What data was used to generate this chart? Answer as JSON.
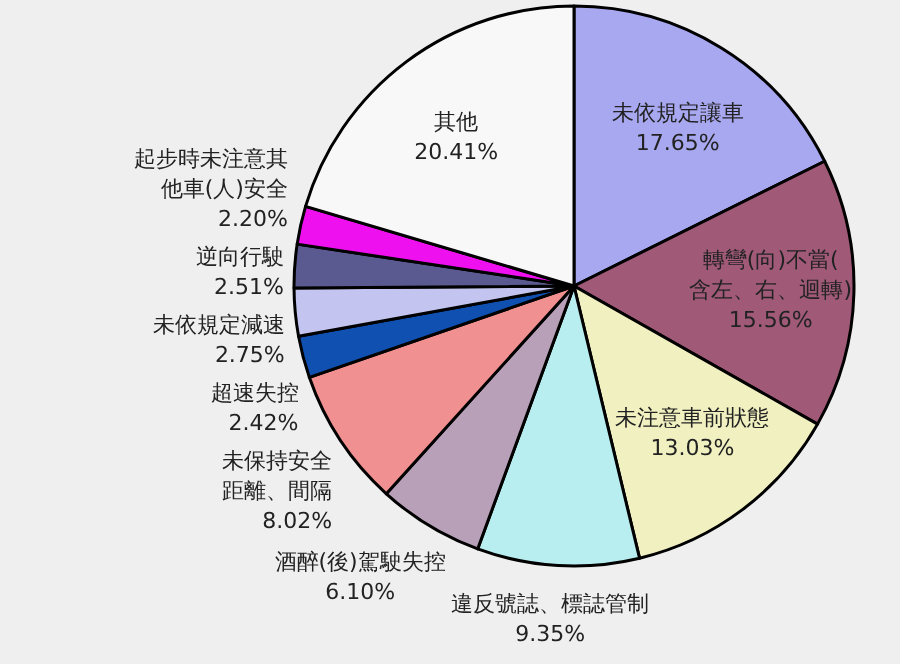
{
  "chart_data": {
    "type": "pie",
    "categories": [
      "未依規定讓車",
      "轉彎(向)不當(含左、右、迴轉)",
      "未注意車前狀態",
      "違反號誌、標誌管制",
      "酒醉(後)駕駛失控",
      "未保持安全距離、間隔",
      "超速失控",
      "未依規定減速",
      "逆向行駛",
      "起步時未注意其他車(人)安全",
      "其他"
    ],
    "values": [
      17.65,
      15.56,
      13.03,
      9.35,
      6.1,
      8.02,
      2.42,
      2.75,
      2.51,
      2.2,
      20.41
    ],
    "value_labels": [
      "17.65%",
      "15.56%",
      "13.03%",
      "9.35%",
      "6.10%",
      "8.02%",
      "2.42%",
      "2.75%",
      "2.51%",
      "2.20%",
      "20.41%"
    ],
    "colors": [
      "#a8a8f0",
      "#a05a78",
      "#f0f0c0",
      "#b8eef0",
      "#b8a0b8",
      "#f09090",
      "#1050b0",
      "#c4c4f0",
      "#5a5a90",
      "#ee10ee",
      "#f8f8f8"
    ]
  }
}
